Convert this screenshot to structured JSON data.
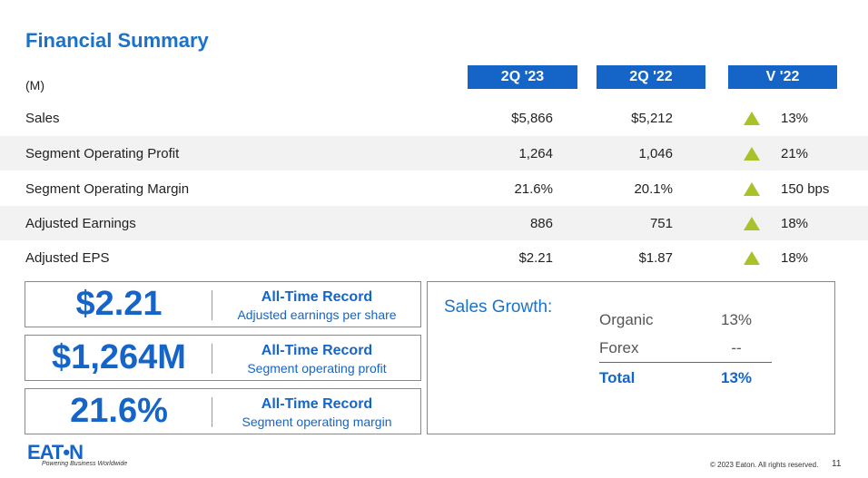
{
  "title": "Financial Summary",
  "units": "(M)",
  "columns": [
    "2Q '23",
    "2Q '22",
    "V '22"
  ],
  "rows": [
    {
      "label": "Sales",
      "q23": "$5,866",
      "q22": "$5,212",
      "variance": "13%"
    },
    {
      "label": "Segment Operating Profit",
      "q23": "1,264",
      "q22": "1,046",
      "variance": "21%"
    },
    {
      "label": "Segment Operating Margin",
      "q23": "21.6%",
      "q22": "20.1%",
      "variance": "150 bps"
    },
    {
      "label": "Adjusted Earnings",
      "q23": "886",
      "q22": "751",
      "variance": "18%"
    },
    {
      "label": "Adjusted EPS",
      "q23": "$2.21",
      "q22": "$1.87",
      "variance": "18%"
    }
  ],
  "records": [
    {
      "value": "$2.21",
      "title": "All-Time Record",
      "subtitle": "Adjusted earnings per share"
    },
    {
      "value": "$1,264M",
      "title": "All-Time Record",
      "subtitle": "Segment operating profit"
    },
    {
      "value": "21.6%",
      "title": "All-Time Record",
      "subtitle": "Segment operating margin"
    }
  ],
  "sales_growth": {
    "title": "Sales Growth:",
    "items": [
      {
        "label": "Organic",
        "value": "13%"
      },
      {
        "label": "Forex",
        "value": "--"
      }
    ],
    "total": {
      "label": "Total",
      "value": "13%"
    }
  },
  "brand": {
    "logo": "EAT•N",
    "tagline": "Powering Business Worldwide"
  },
  "footer": {
    "copyright": "© 2023 Eaton. All rights reserved.",
    "page": "11"
  },
  "colors": {
    "brand_blue": "#1565c8",
    "up_arrow": "#a8c32a",
    "row_shade": "#f2f2f2"
  },
  "icons": {
    "variance": "up-triangle-icon"
  }
}
